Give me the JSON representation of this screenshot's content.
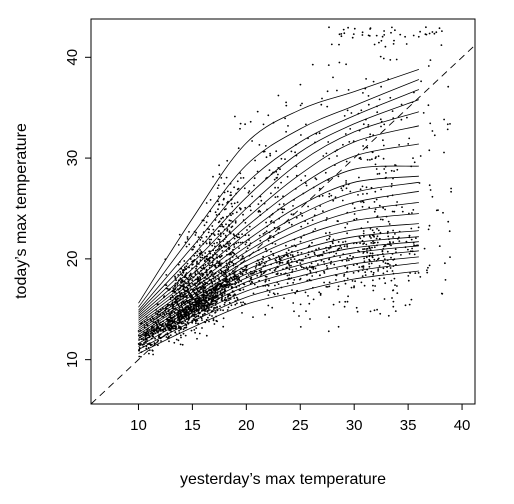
{
  "chart_data": {
    "type": "scatter",
    "title": "",
    "xlabel": "yesterday’s max temperature",
    "ylabel": "today’s max temperature",
    "xlim": [
      5.6,
      41.2
    ],
    "ylim": [
      5.6,
      43.8
    ],
    "x_ticks": [
      10,
      15,
      20,
      25,
      30,
      35,
      40
    ],
    "y_ticks": [
      10,
      20,
      30,
      40
    ],
    "grid": false,
    "legend": "none",
    "reference_line": {
      "style": "dashed",
      "slope": 1,
      "intercept": 0
    },
    "point_cloud": {
      "description_count": 2600,
      "core": {
        "x_center": 15.5,
        "y_center": 16,
        "x_min": 10,
        "x_max": 39
      },
      "marker": "small black dot"
    },
    "quantile_curves": [
      {
        "x": [
          10,
          15,
          20,
          25,
          30,
          36
        ],
        "y": [
          10.6,
          13.2,
          15.5,
          16.8,
          18.0,
          18.8
        ]
      },
      {
        "x": [
          10,
          15,
          20,
          25,
          30,
          36
        ],
        "y": [
          11.0,
          13.8,
          16.2,
          17.6,
          18.8,
          19.6
        ]
      },
      {
        "x": [
          10,
          15,
          20,
          25,
          30,
          36
        ],
        "y": [
          11.3,
          14.3,
          16.8,
          18.3,
          19.5,
          20.2
        ]
      },
      {
        "x": [
          10,
          15,
          20,
          25,
          30,
          36
        ],
        "y": [
          11.6,
          14.7,
          17.3,
          18.9,
          20.1,
          20.8
        ]
      },
      {
        "x": [
          10,
          15,
          20,
          25,
          30,
          36
        ],
        "y": [
          11.9,
          15.0,
          17.7,
          19.4,
          20.6,
          21.3
        ]
      },
      {
        "x": [
          10,
          15,
          20,
          25,
          30,
          36
        ],
        "y": [
          12.1,
          15.3,
          18.1,
          19.9,
          21.1,
          21.7
        ]
      },
      {
        "x": [
          10,
          15,
          20,
          25,
          30,
          36
        ],
        "y": [
          12.3,
          15.6,
          18.5,
          20.4,
          21.6,
          22.2
        ]
      },
      {
        "x": [
          10,
          15,
          20,
          25,
          30,
          36
        ],
        "y": [
          12.5,
          15.9,
          18.9,
          20.9,
          22.2,
          22.8
        ]
      },
      {
        "x": [
          10,
          15,
          20,
          25,
          30,
          36
        ],
        "y": [
          12.7,
          16.1,
          19.3,
          21.5,
          22.9,
          23.5
        ]
      },
      {
        "x": [
          10,
          15,
          20,
          25,
          30,
          36
        ],
        "y": [
          12.9,
          16.4,
          19.8,
          22.2,
          23.8,
          24.5
        ]
      },
      {
        "x": [
          10,
          15,
          20,
          25,
          30,
          36
        ],
        "y": [
          13.1,
          16.7,
          20.2,
          22.9,
          24.7,
          25.6
        ]
      },
      {
        "x": [
          10,
          15,
          20,
          25,
          30,
          36
        ],
        "y": [
          13.3,
          17.0,
          20.7,
          23.6,
          25.6,
          26.7
        ]
      },
      {
        "x": [
          10,
          15,
          20,
          25,
          30,
          36
        ],
        "y": [
          13.5,
          17.3,
          21.2,
          24.4,
          26.6,
          27.6
        ]
      },
      {
        "x": [
          10,
          15,
          20,
          25,
          30,
          36
        ],
        "y": [
          13.7,
          17.7,
          21.8,
          25.3,
          27.6,
          28.2
        ]
      },
      {
        "x": [
          10,
          15,
          20,
          25,
          30,
          36
        ],
        "y": [
          13.9,
          18.1,
          22.5,
          26.3,
          28.9,
          29.2
        ]
      },
      {
        "x": [
          10,
          15,
          20,
          25,
          30,
          36
        ],
        "y": [
          14.1,
          18.5,
          23.2,
          27.3,
          30.2,
          31.4
        ]
      },
      {
        "x": [
          10,
          15,
          20,
          25,
          30,
          36
        ],
        "y": [
          14.3,
          19.0,
          24.0,
          28.4,
          31.6,
          33.2
        ]
      },
      {
        "x": [
          10,
          15,
          20,
          25,
          30,
          36
        ],
        "y": [
          14.5,
          19.6,
          25.0,
          29.6,
          32.6,
          34.6
        ]
      },
      {
        "x": [
          10,
          15,
          20,
          25,
          30,
          36
        ],
        "y": [
          14.7,
          20.3,
          26.1,
          30.6,
          33.4,
          35.8
        ]
      },
      {
        "x": [
          10,
          15,
          20,
          25,
          30,
          36
        ],
        "y": [
          14.9,
          21.2,
          27.5,
          31.6,
          34.2,
          36.8
        ]
      },
      {
        "x": [
          10,
          15,
          20,
          25,
          30,
          36
        ],
        "y": [
          15.2,
          22.4,
          29.3,
          32.9,
          35.2,
          37.8
        ]
      },
      {
        "x": [
          10,
          15,
          20,
          25,
          30,
          36
        ],
        "y": [
          15.6,
          24.0,
          31.5,
          34.8,
          36.6,
          38.8
        ]
      }
    ]
  }
}
